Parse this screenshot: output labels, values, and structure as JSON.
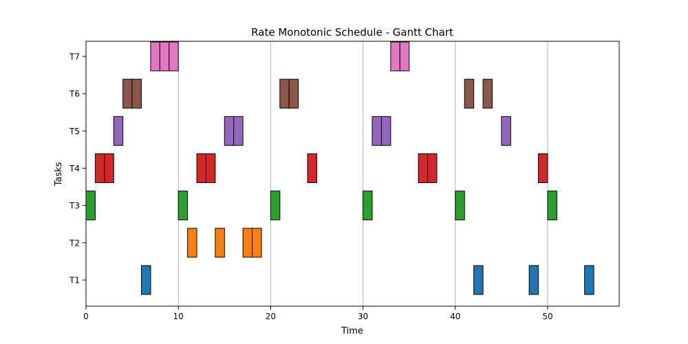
{
  "chart_data": {
    "type": "gantt",
    "title": "Rate Monotonic Schedule - Gantt Chart",
    "xlabel": "Time",
    "ylabel": "Tasks",
    "xlim": [
      0,
      57.75
    ],
    "xticks": [
      0,
      10,
      20,
      30,
      40,
      50
    ],
    "grid": "vertical",
    "tasks": [
      {
        "name": "T1",
        "color": "#1f77b4",
        "segments": [
          [
            6,
            7
          ],
          [
            42,
            43
          ],
          [
            48,
            49
          ],
          [
            54,
            55
          ]
        ]
      },
      {
        "name": "T2",
        "color": "#ff7f0e",
        "segments": [
          [
            11,
            12
          ],
          [
            14,
            15
          ],
          [
            17,
            18
          ],
          [
            18,
            19
          ]
        ]
      },
      {
        "name": "T3",
        "color": "#2ca02c",
        "segments": [
          [
            0,
            1
          ],
          [
            10,
            11
          ],
          [
            20,
            21
          ],
          [
            30,
            31
          ],
          [
            40,
            41
          ],
          [
            50,
            51
          ]
        ]
      },
      {
        "name": "T4",
        "color": "#d62728",
        "segments": [
          [
            1,
            2
          ],
          [
            2,
            3
          ],
          [
            12,
            13
          ],
          [
            13,
            14
          ],
          [
            24,
            25
          ],
          [
            36,
            37
          ],
          [
            37,
            38
          ],
          [
            49,
            50
          ]
        ]
      },
      {
        "name": "T5",
        "color": "#9467bd",
        "segments": [
          [
            3,
            4
          ],
          [
            15,
            16
          ],
          [
            16,
            17
          ],
          [
            31,
            32
          ],
          [
            32,
            33
          ],
          [
            45,
            46
          ]
        ]
      },
      {
        "name": "T6",
        "color": "#8c564b",
        "segments": [
          [
            4,
            5
          ],
          [
            5,
            6
          ],
          [
            21,
            22
          ],
          [
            22,
            23
          ],
          [
            41,
            42
          ],
          [
            43,
            44
          ]
        ]
      },
      {
        "name": "T7",
        "color": "#e377c2",
        "segments": [
          [
            7,
            8
          ],
          [
            8,
            9
          ],
          [
            9,
            10
          ],
          [
            33,
            34
          ],
          [
            34,
            35
          ]
        ]
      }
    ]
  }
}
